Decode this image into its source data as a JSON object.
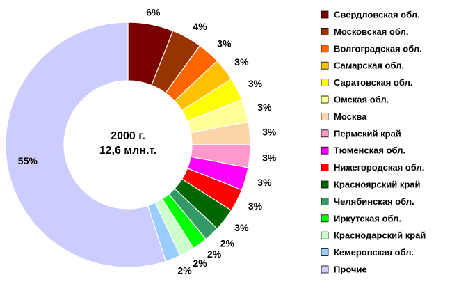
{
  "chart_data": {
    "type": "pie",
    "style": "doughnut",
    "center_label": [
      "2000 г.",
      "12,6 млн.т."
    ],
    "slices": [
      {
        "label": "Свердловская обл.",
        "value": 6,
        "color": "#7b0000"
      },
      {
        "label": "Московская обл.",
        "value": 4,
        "color": "#993300"
      },
      {
        "label": "Волгоградская обл.",
        "value": 3,
        "color": "#ff6600"
      },
      {
        "label": "Самарская обл.",
        "value": 3,
        "color": "#ffc000"
      },
      {
        "label": "Саратовская обл.",
        "value": 3,
        "color": "#ffff00"
      },
      {
        "label": "Омская обл.",
        "value": 3,
        "color": "#ffff99"
      },
      {
        "label": "Москва",
        "value": 3,
        "color": "#fcd5a8"
      },
      {
        "label": "Пермский край",
        "value": 3,
        "color": "#ff99cc"
      },
      {
        "label": "Тюменская обл.",
        "value": 3,
        "color": "#ff00ff"
      },
      {
        "label": "Нижегородская обл.",
        "value": 3,
        "color": "#ff0000"
      },
      {
        "label": "Красноярский край",
        "value": 3,
        "color": "#006600"
      },
      {
        "label": "Челябинская обл.",
        "value": 2,
        "color": "#339966"
      },
      {
        "label": "Иркутская обл.",
        "value": 2,
        "color": "#00ff00"
      },
      {
        "label": "Краснодарский край",
        "value": 2,
        "color": "#ccffcc"
      },
      {
        "label": "Кемеровская обл.",
        "value": 2,
        "color": "#99ccff"
      },
      {
        "label": "Прочие",
        "value": 55,
        "color": "#ccccff"
      }
    ],
    "value_suffix": "%",
    "legend_position": "right"
  }
}
